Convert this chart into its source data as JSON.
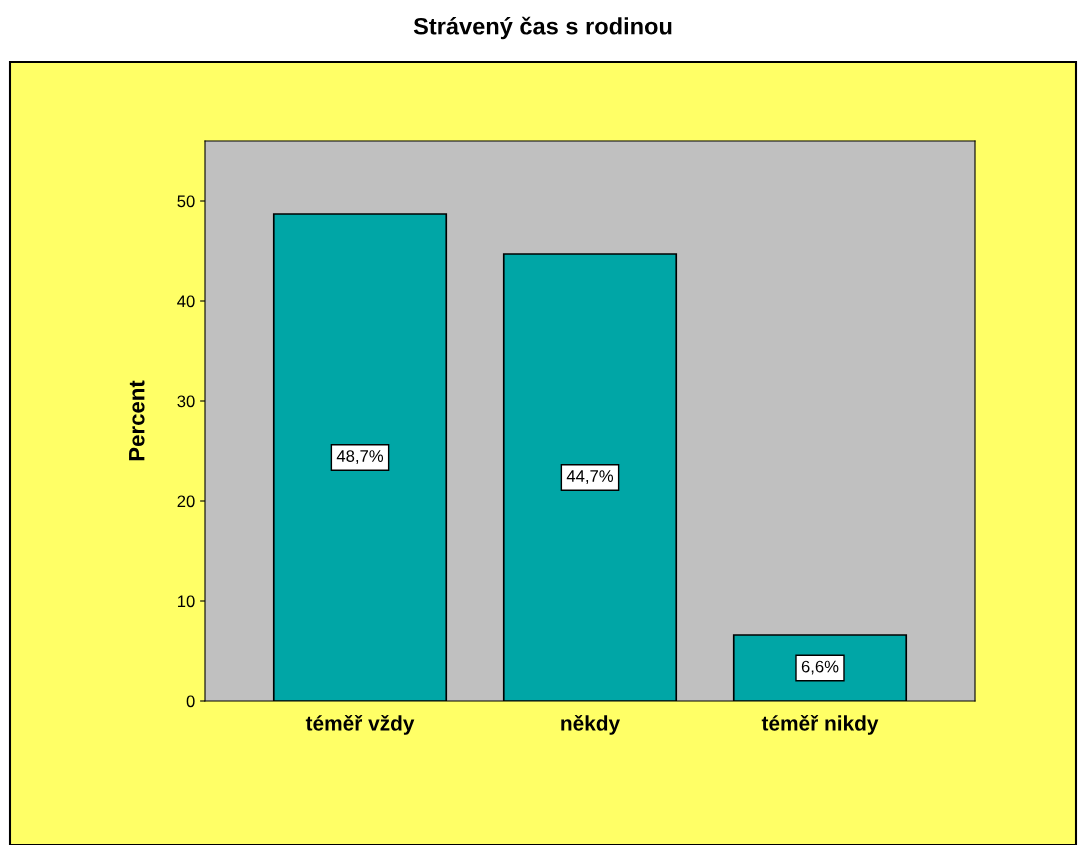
{
  "chart_data": {
    "type": "bar",
    "title": "Strávený čas s rodinou",
    "ylabel": "Percent",
    "categories": [
      "téměř vždy",
      "někdy",
      "téměř nikdy"
    ],
    "values": [
      48.7,
      44.7,
      6.6
    ],
    "value_labels": [
      "48,7%",
      "44,7%",
      "6,6%"
    ],
    "color": "#00a6a6",
    "ylim": [
      0,
      56
    ],
    "yticks": [
      0,
      10,
      20,
      30,
      40,
      50
    ],
    "grid": false,
    "legend": false
  }
}
